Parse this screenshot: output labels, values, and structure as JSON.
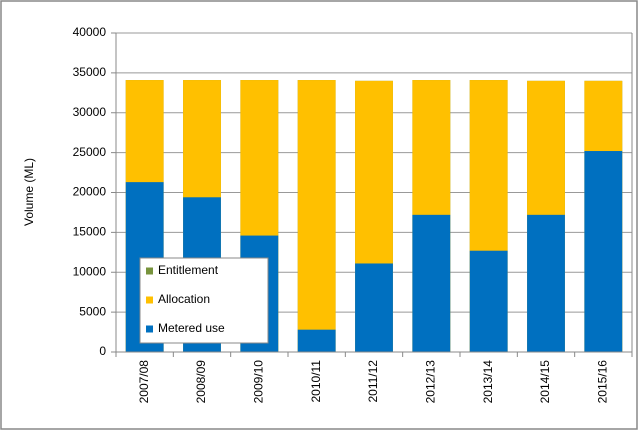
{
  "chart_data": {
    "type": "bar",
    "stacked": false,
    "y_label": "Volume (ML)",
    "categories": [
      "2007/08",
      "2008/09",
      "2009/10",
      "2010/11",
      "2011/12",
      "2012/13",
      "2013/14",
      "2014/15",
      "2015/16"
    ],
    "series": [
      {
        "name": "Entitlement",
        "color": "#77933c",
        "values": [
          34100,
          34100,
          34100,
          34100,
          34000,
          34100,
          34100,
          34000,
          34000
        ]
      },
      {
        "name": "Allocation",
        "color": "#ffc000",
        "values": [
          34100,
          34100,
          34100,
          34100,
          34000,
          34100,
          34100,
          34000,
          34000
        ]
      },
      {
        "name": "Metered use",
        "color": "#0070c0",
        "values": [
          21300,
          19400,
          14600,
          2800,
          11100,
          17200,
          12700,
          17200,
          25200
        ]
      }
    ],
    "ylim": [
      0,
      40000
    ],
    "yticks": [
      0,
      5000,
      10000,
      15000,
      20000,
      25000,
      30000,
      35000,
      40000
    ],
    "grid": true,
    "legend": "bottom-left"
  }
}
